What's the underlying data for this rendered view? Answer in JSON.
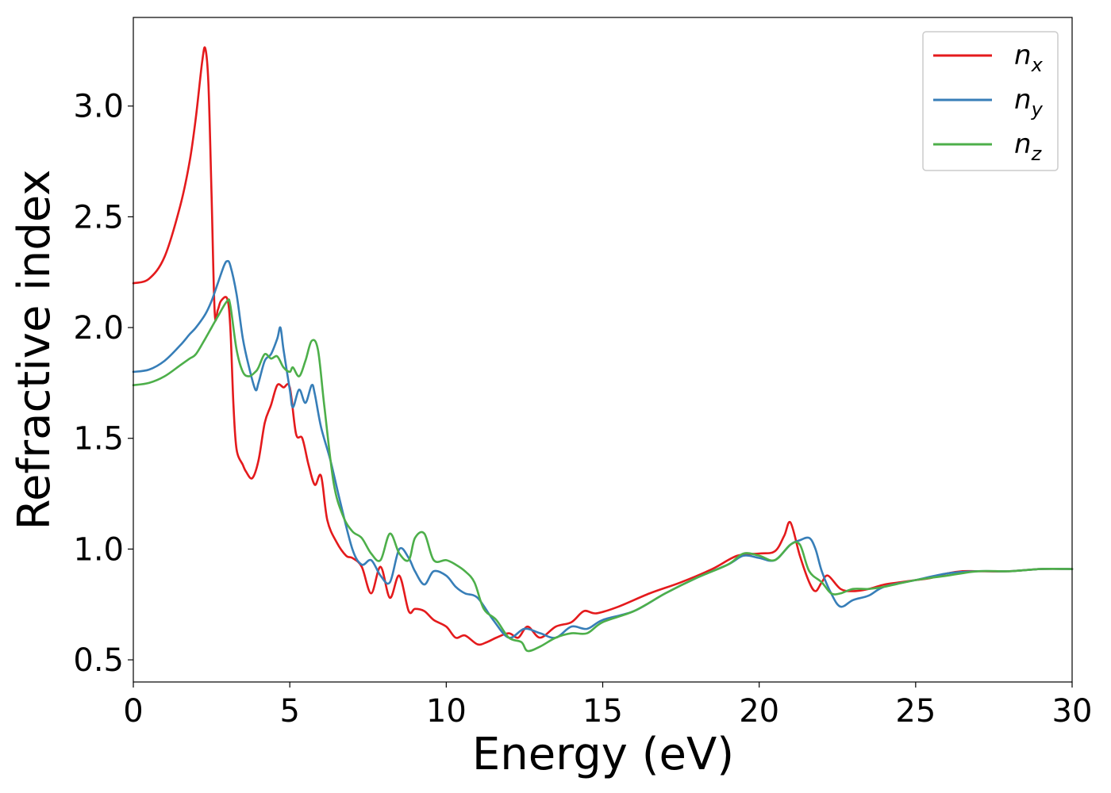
{
  "chart_data": {
    "type": "line",
    "title": "",
    "xlabel": "Energy (eV)",
    "ylabel": "Refractive index",
    "xlim": [
      0,
      30
    ],
    "ylim": [
      0.4,
      3.4
    ],
    "xticks": [
      0,
      5,
      10,
      15,
      20,
      25,
      30
    ],
    "yticks": [
      0.5,
      1.0,
      1.5,
      2.0,
      2.5,
      3.0
    ],
    "xtick_labels": [
      "0",
      "5",
      "10",
      "15",
      "20",
      "25",
      "30"
    ],
    "ytick_labels": [
      "0.5",
      "1.0",
      "1.5",
      "2.0",
      "2.5",
      "3.0"
    ],
    "grid": false,
    "legend": "top-right",
    "series": [
      {
        "name": "n_x",
        "label_main": "n",
        "label_sub": "x",
        "color": "#e41a1c",
        "x": [
          0,
          0.5,
          1.0,
          1.5,
          1.8,
          2.0,
          2.2,
          2.3,
          2.4,
          2.5,
          2.6,
          2.7,
          2.8,
          3.0,
          3.1,
          3.2,
          3.3,
          3.5,
          3.6,
          3.8,
          4.0,
          4.2,
          4.4,
          4.6,
          4.8,
          5.0,
          5.2,
          5.4,
          5.6,
          5.8,
          6.0,
          6.2,
          6.5,
          6.8,
          7.0,
          7.3,
          7.6,
          7.9,
          8.2,
          8.5,
          8.8,
          9.0,
          9.3,
          9.6,
          10.0,
          10.3,
          10.6,
          11.0,
          11.3,
          11.6,
          12.0,
          12.3,
          12.6,
          13.0,
          13.5,
          14.0,
          14.4,
          14.8,
          15.5,
          16.5,
          17.5,
          18.5,
          19.3,
          20.0,
          20.5,
          20.8,
          21.0,
          21.3,
          21.6,
          21.8,
          22.0,
          22.2,
          22.6,
          23.0,
          23.5,
          24.0,
          24.5,
          25.0,
          25.5,
          26.0,
          26.5,
          27.0,
          28.0,
          29.0,
          30.0
        ],
        "y": [
          2.2,
          2.22,
          2.32,
          2.55,
          2.75,
          2.95,
          3.2,
          3.26,
          3.1,
          2.6,
          2.07,
          2.08,
          2.12,
          2.13,
          2.0,
          1.65,
          1.45,
          1.38,
          1.35,
          1.32,
          1.4,
          1.57,
          1.65,
          1.74,
          1.73,
          1.73,
          1.52,
          1.5,
          1.38,
          1.29,
          1.33,
          1.13,
          1.03,
          0.97,
          0.96,
          0.92,
          0.8,
          0.92,
          0.78,
          0.88,
          0.72,
          0.73,
          0.72,
          0.68,
          0.65,
          0.6,
          0.61,
          0.57,
          0.58,
          0.6,
          0.62,
          0.6,
          0.65,
          0.6,
          0.65,
          0.67,
          0.72,
          0.71,
          0.74,
          0.8,
          0.85,
          0.91,
          0.97,
          0.98,
          0.99,
          1.06,
          1.12,
          0.97,
          0.85,
          0.81,
          0.85,
          0.88,
          0.82,
          0.81,
          0.82,
          0.84,
          0.85,
          0.86,
          0.87,
          0.89,
          0.9,
          0.9,
          0.9,
          0.91,
          0.91
        ]
      },
      {
        "name": "n_y",
        "label_main": "n",
        "label_sub": "y",
        "color": "#377eb8",
        "x": [
          0,
          0.5,
          1.0,
          1.5,
          1.8,
          2.0,
          2.3,
          2.5,
          2.7,
          2.9,
          3.0,
          3.1,
          3.3,
          3.5,
          3.7,
          3.9,
          4.0,
          4.2,
          4.4,
          4.6,
          4.7,
          4.8,
          5.0,
          5.1,
          5.3,
          5.5,
          5.7,
          5.8,
          6.0,
          6.3,
          6.6,
          7.0,
          7.3,
          7.6,
          7.9,
          8.2,
          8.5,
          8.8,
          9.0,
          9.3,
          9.6,
          10.0,
          10.3,
          10.6,
          11.0,
          11.5,
          12.0,
          12.5,
          13.0,
          13.5,
          14.0,
          14.5,
          15.0,
          16.0,
          17.0,
          18.0,
          19.0,
          19.5,
          20.0,
          20.5,
          21.0,
          21.3,
          21.6,
          21.8,
          22.0,
          22.3,
          22.6,
          23.0,
          23.5,
          24.0,
          25.0,
          26.0,
          27.0,
          28.0,
          29.0,
          30.0
        ],
        "y": [
          1.8,
          1.81,
          1.85,
          1.92,
          1.97,
          2.0,
          2.06,
          2.12,
          2.2,
          2.28,
          2.3,
          2.28,
          2.15,
          1.95,
          1.82,
          1.72,
          1.75,
          1.85,
          1.88,
          1.95,
          2.0,
          1.9,
          1.72,
          1.64,
          1.72,
          1.66,
          1.74,
          1.7,
          1.55,
          1.4,
          1.22,
          1.0,
          0.93,
          0.95,
          0.88,
          0.85,
          1.0,
          0.96,
          0.9,
          0.84,
          0.9,
          0.88,
          0.83,
          0.8,
          0.78,
          0.68,
          0.6,
          0.64,
          0.62,
          0.6,
          0.65,
          0.64,
          0.68,
          0.72,
          0.8,
          0.87,
          0.93,
          0.97,
          0.96,
          0.95,
          1.02,
          1.04,
          1.05,
          1.0,
          0.9,
          0.8,
          0.74,
          0.77,
          0.79,
          0.83,
          0.86,
          0.89,
          0.9,
          0.9,
          0.91,
          0.91
        ]
      },
      {
        "name": "n_z",
        "label_main": "n",
        "label_sub": "z",
        "color": "#4daf4a",
        "x": [
          0,
          0.5,
          1.0,
          1.5,
          1.8,
          2.0,
          2.3,
          2.5,
          2.7,
          3.0,
          3.1,
          3.3,
          3.5,
          3.7,
          3.9,
          4.0,
          4.2,
          4.4,
          4.6,
          4.8,
          5.0,
          5.1,
          5.3,
          5.5,
          5.7,
          5.9,
          6.1,
          6.4,
          6.7,
          7.0,
          7.3,
          7.6,
          7.9,
          8.2,
          8.5,
          8.8,
          9.0,
          9.3,
          9.6,
          10.0,
          10.3,
          10.6,
          10.9,
          11.2,
          11.6,
          12.0,
          12.4,
          12.6,
          13.0,
          13.5,
          14.0,
          14.5,
          15.0,
          16.0,
          17.0,
          18.0,
          19.0,
          19.5,
          20.0,
          20.5,
          21.0,
          21.3,
          21.6,
          22.0,
          22.3,
          22.6,
          23.0,
          23.5,
          24.0,
          25.0,
          26.0,
          27.0,
          28.0,
          29.0,
          30.0
        ],
        "y": [
          1.74,
          1.75,
          1.78,
          1.83,
          1.86,
          1.88,
          1.95,
          2.0,
          2.05,
          2.12,
          2.1,
          1.9,
          1.8,
          1.78,
          1.8,
          1.82,
          1.88,
          1.86,
          1.87,
          1.82,
          1.8,
          1.82,
          1.78,
          1.85,
          1.94,
          1.9,
          1.65,
          1.3,
          1.15,
          1.08,
          1.05,
          0.98,
          0.95,
          1.07,
          0.98,
          0.95,
          1.05,
          1.07,
          0.95,
          0.95,
          0.93,
          0.9,
          0.85,
          0.73,
          0.68,
          0.6,
          0.58,
          0.54,
          0.56,
          0.6,
          0.62,
          0.62,
          0.67,
          0.72,
          0.8,
          0.87,
          0.93,
          0.98,
          0.97,
          0.95,
          1.02,
          1.02,
          0.9,
          0.85,
          0.8,
          0.8,
          0.82,
          0.82,
          0.83,
          0.86,
          0.88,
          0.9,
          0.9,
          0.91,
          0.91
        ]
      }
    ]
  }
}
